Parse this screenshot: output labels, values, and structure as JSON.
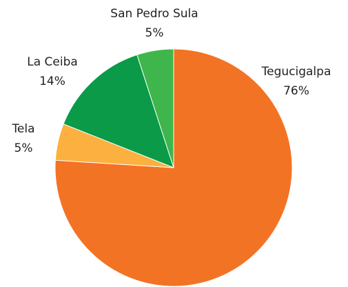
{
  "chart_data": {
    "type": "pie",
    "categories": [
      "Tegucigalpa",
      "Tela",
      "La Ceiba",
      "San Pedro Sula"
    ],
    "values": [
      76,
      5,
      14,
      5
    ],
    "value_labels": [
      "76%",
      "5%",
      "14%",
      "5%"
    ],
    "colors": [
      "#f37324",
      "#fbb040",
      "#0a9a48",
      "#3fb64b"
    ]
  }
}
